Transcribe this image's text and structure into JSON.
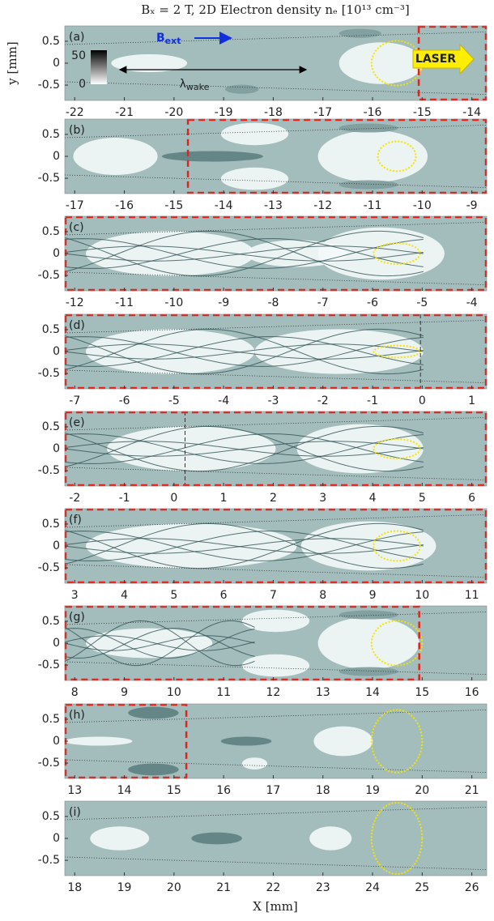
{
  "chart_data": [
    {
      "type": "image",
      "panel": "(a)",
      "xlim": [
        -22.2,
        -13.7
      ],
      "xticks": [
        -22,
        -21,
        -20,
        -19,
        -18,
        -17,
        -16,
        -15,
        -14
      ],
      "ylim": [
        -0.85,
        0.85
      ],
      "yticks": [
        0.5,
        0,
        -0.5
      ],
      "title": "Bₓ = 2 T,  2D Electron density nₑ [10¹³ cm⁻³]",
      "ylabel": "y [mm]",
      "annotations": {
        "b_main": "B",
        "b_sub": "ext",
        "lambda_main": "λ",
        "lambda_sub": "wake",
        "laser": "LASER"
      },
      "colorbar": {
        "ticks": [
          50,
          0
        ]
      }
    },
    {
      "type": "image",
      "panel": "(b)",
      "xlim": [
        -17.2,
        -8.7
      ],
      "xticks": [
        -17,
        -16,
        -15,
        -14,
        -13,
        -12,
        -11,
        -10,
        -9
      ],
      "ylim": [
        -0.85,
        0.85
      ],
      "yticks": [
        0.5,
        0,
        -0.5
      ]
    },
    {
      "type": "image",
      "panel": "(c)",
      "xlim": [
        -12.2,
        -3.7
      ],
      "xticks": [
        -12,
        -11,
        -10,
        -9,
        -8,
        -7,
        -6,
        -5,
        -4
      ],
      "ylim": [
        -0.85,
        0.85
      ],
      "yticks": [
        0.5,
        0,
        -0.5
      ]
    },
    {
      "type": "image",
      "panel": "(d)",
      "xlim": [
        -7.2,
        1.3
      ],
      "xticks": [
        -7,
        -6,
        -5,
        -4,
        -3,
        -2,
        -1,
        0,
        1
      ],
      "ylim": [
        -0.85,
        0.85
      ],
      "yticks": [
        0.5,
        0,
        -0.5
      ]
    },
    {
      "type": "image",
      "panel": "(e)",
      "xlim": [
        -2.2,
        6.3
      ],
      "xticks": [
        -2,
        -1,
        0,
        1,
        2,
        3,
        4,
        5,
        6
      ],
      "ylim": [
        -0.85,
        0.85
      ],
      "yticks": [
        0.5,
        0,
        -0.5
      ]
    },
    {
      "type": "image",
      "panel": "(f)",
      "xlim": [
        2.8,
        11.3
      ],
      "xticks": [
        3,
        4,
        5,
        6,
        7,
        8,
        9,
        10,
        11
      ],
      "ylim": [
        -0.85,
        0.85
      ],
      "yticks": [
        0.5,
        0,
        -0.5
      ]
    },
    {
      "type": "image",
      "panel": "(g)",
      "xlim": [
        7.8,
        16.3
      ],
      "xticks": [
        8,
        9,
        10,
        11,
        12,
        13,
        14,
        15,
        16
      ],
      "ylim": [
        -0.85,
        0.85
      ],
      "yticks": [
        0.5,
        0,
        -0.5
      ]
    },
    {
      "type": "image",
      "panel": "(h)",
      "xlim": [
        12.8,
        21.3
      ],
      "xticks": [
        13,
        14,
        15,
        16,
        17,
        18,
        19,
        20,
        21
      ],
      "ylim": [
        -0.85,
        0.85
      ],
      "yticks": [
        0.5,
        0,
        -0.5
      ]
    },
    {
      "type": "image",
      "panel": "(i)",
      "xlim": [
        17.8,
        26.3
      ],
      "xticks": [
        18,
        19,
        20,
        21,
        22,
        23,
        24,
        25,
        26
      ],
      "ylim": [
        -0.85,
        0.85
      ],
      "yticks": [
        0.5,
        0,
        -0.5
      ],
      "xlabel": "X [mm]"
    }
  ]
}
